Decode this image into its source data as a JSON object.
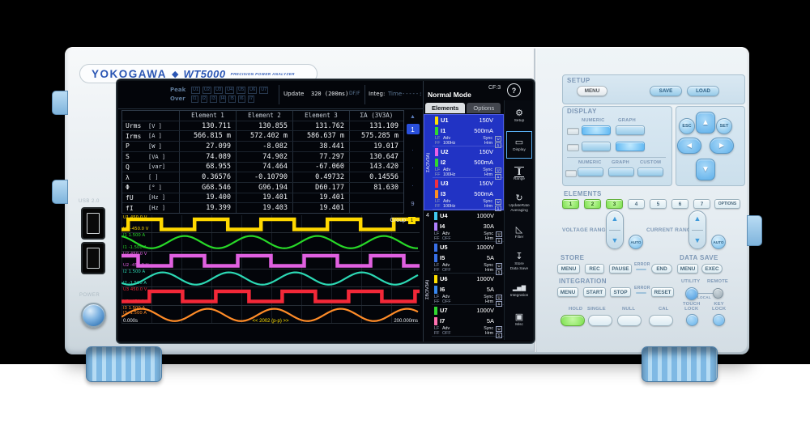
{
  "device": {
    "brand": "YOKOGAWA",
    "diamond": "◆",
    "model": "WT5000",
    "subtitle": "PRECISION POWER ANALYZER",
    "usb_label": "USB 2.0",
    "power_label": "POWER"
  },
  "screen": {
    "statusbar": {
      "peak_label": "Peak",
      "peak_channels": [
        "U1",
        "U2",
        "U3",
        "U4",
        "U5",
        "U6",
        "U7"
      ],
      "over_label": "Over",
      "over_channels": [
        "I1",
        "I2",
        "I3",
        "I4",
        "I5",
        "I6",
        "I7"
      ],
      "update_label": "Update",
      "update_value": "320 (200ms)",
      "update_suffix": "DF/F",
      "integ_label": "Integ:",
      "time_label": "Time",
      "time_value": "-----:--:--"
    },
    "table": {
      "headers": [
        "Element 1",
        "Element 2",
        "Element 3",
        "ΣA (3V3A)"
      ],
      "rows": [
        {
          "name": "Urms",
          "unit": "[V  ]",
          "values": [
            "130.711",
            "130.855",
            "131.762",
            "131.109"
          ]
        },
        {
          "name": "Irms",
          "unit": "[A  ]",
          "values": [
            "566.815 m",
            "572.402 m",
            "586.637 m",
            "575.285 m"
          ]
        },
        {
          "name": "P",
          "unit": "[W  ]",
          "values": [
            "27.099",
            "-8.082",
            "38.441",
            "19.017"
          ]
        },
        {
          "name": "S",
          "unit": "[VA ]",
          "values": [
            "74.089",
            "74.902",
            "77.297",
            "130.647"
          ]
        },
        {
          "name": "Q",
          "unit": "[var]",
          "values": [
            "68.955",
            "74.464",
            "-67.060",
            "143.420"
          ]
        },
        {
          "name": "λ",
          "unit": "[   ]",
          "values": [
            "0.36576",
            "-0.10790",
            "0.49732",
            "0.14556"
          ]
        },
        {
          "name": "Φ",
          "unit": "[°  ]",
          "values": [
            "G68.546",
            "G96.194",
            "D60.177",
            "81.630"
          ]
        },
        {
          "name": "fU",
          "unit": "[Hz ]",
          "values": [
            "19.400",
            "19.401",
            "19.401",
            ""
          ]
        },
        {
          "name": "fI",
          "unit": "[Hz ]",
          "values": [
            "19.399",
            "19.403",
            "19.401",
            ""
          ]
        }
      ]
    },
    "pager": {
      "up": "▲",
      "items": [
        "1",
        "·",
        "·",
        "·",
        "9"
      ],
      "current": "1",
      "down": "▼"
    },
    "sidebar": {
      "mode": "Normal Mode",
      "cf": "CF:3",
      "help": "?",
      "tabs": [
        {
          "label": "Elements",
          "active": true
        },
        {
          "label": "Options",
          "active": false
        }
      ],
      "group_a_label": "ΣA(3V3A)",
      "group_b_label": "ΣB(3V3A)",
      "element4_label": "4",
      "elements": [
        {
          "num": 1,
          "group": "A",
          "u_ch": "U1",
          "u_range": "150V",
          "u_color": "#ffe000",
          "i_ch": "I1",
          "i_range": "500mA",
          "i_color": "#30d830",
          "lf": "LF",
          "ff": "FF",
          "adv": "Adv",
          "freq": "100Hz",
          "sync": "Sync",
          "hrm": "Hrm",
          "box_u": "U",
          "box_n": "1"
        },
        {
          "num": 2,
          "group": "A",
          "u_ch": "U2",
          "u_range": "150V",
          "u_color": "#e860e8",
          "i_ch": "I2",
          "i_range": "500mA",
          "i_color": "#30d830",
          "lf": "LF",
          "ff": "FF",
          "adv": "Adv",
          "freq": "100Hz",
          "sync": "Sync",
          "hrm": "Hrm",
          "box_u": "U",
          "box_n": "1"
        },
        {
          "num": 3,
          "group": "A",
          "u_ch": "U3",
          "u_range": "150V",
          "u_color": "#f03040",
          "i_ch": "I3",
          "i_range": "500mA",
          "i_color": "#ff9020",
          "lf": "LF",
          "ff": "FF",
          "adv": "Adv",
          "freq": "100Hz",
          "sync": "Sync",
          "hrm": "Hrm",
          "box_u": "U",
          "box_n": "1"
        },
        {
          "num": 4,
          "group": "4",
          "u_ch": "U4",
          "u_range": "1000V",
          "u_color": "#40c8f0",
          "i_ch": "I4",
          "i_range": "30A",
          "i_color": "#b080ff",
          "lf": "LF",
          "ff": "FF",
          "adv": "Adv",
          "freq": "OFF",
          "sync": "Sync",
          "hrm": "Hrm",
          "box_u": "U",
          "box_n": "1"
        },
        {
          "num": 5,
          "group": "B",
          "u_ch": "U5",
          "u_range": "1000V",
          "u_color": "#3870e8",
          "i_ch": "I5",
          "i_range": "5A",
          "i_color": "#3870e8",
          "lf": "LF",
          "ff": "FF",
          "adv": "Adv",
          "freq": "OFF",
          "sync": "Sync",
          "hrm": "Hrm",
          "box_u": "U",
          "box_n": "1"
        },
        {
          "num": 6,
          "group": "B",
          "u_ch": "U6",
          "u_range": "1000V",
          "u_color": "#ffe000",
          "i_ch": "I6",
          "i_range": "5A",
          "i_color": "#3888f0",
          "lf": "LF",
          "ff": "FF",
          "adv": "Adv",
          "freq": "OFF",
          "sync": "Sync",
          "hrm": "Hrm",
          "box_u": "U",
          "box_n": "1"
        },
        {
          "num": 7,
          "group": "B",
          "u_ch": "U7",
          "u_range": "1000V",
          "u_color": "#30d830",
          "i_ch": "I7",
          "i_range": "5A",
          "i_color": "#ff70b0",
          "lf": "LF",
          "ff": "FF",
          "adv": "Adv",
          "freq": "OFF",
          "sync": "Sync",
          "hrm": "Hrm",
          "box_u": "U",
          "box_n": "1"
        }
      ],
      "menu": [
        {
          "icon": "gear",
          "lines": [
            "Setup"
          ],
          "active": false
        },
        {
          "icon": "display",
          "lines": [
            "Display"
          ],
          "active": true
        },
        {
          "icon": "range",
          "lines": [
            "Range"
          ],
          "active": false
        },
        {
          "icon": "update-rate",
          "lines": [
            "UpdateRate",
            "Averaging"
          ],
          "active": false
        },
        {
          "icon": "filter",
          "lines": [
            "Filter"
          ],
          "active": false
        },
        {
          "icon": "store",
          "lines": [
            "Store",
            "Data Save"
          ],
          "active": false
        },
        {
          "icon": "integration",
          "lines": [
            "Integration"
          ],
          "active": false
        },
        {
          "icon": "misc",
          "lines": [
            "Misc"
          ],
          "active": false
        }
      ]
    },
    "waveforms": {
      "group_label": "Group",
      "group_badge": "1",
      "t_start": "0.000s",
      "t_center": "<< 2002 (p-p) >>",
      "t_end": "200.000ms",
      "channels": [
        {
          "ch": "U1",
          "type": "square",
          "color": "#ffd800",
          "top": "450.0 V",
          "bottom": "-450.0 V",
          "phase": 0.3
        },
        {
          "ch": "I1",
          "type": "sine",
          "color": "#28d828",
          "top": "1.500 A",
          "bottom": "-1.500 A",
          "phase": 0.7
        },
        {
          "ch": "U2",
          "type": "square",
          "color": "#e060e0",
          "top": "450.0 V",
          "bottom": "-450.0 V",
          "phase": 0.95
        },
        {
          "ch": "I2",
          "type": "sine",
          "color": "#2cd8b4",
          "top": "1.500 A",
          "bottom": "-1.500 A",
          "phase": 0.37
        },
        {
          "ch": "U3",
          "type": "square",
          "color": "#f22838",
          "top": "450.0 V",
          "bottom": "-450.0 V",
          "phase": 0.62
        },
        {
          "ch": "I3",
          "type": "sine",
          "color": "#ff8c28",
          "top": "1.500 A",
          "bottom": "-1.500 A",
          "phase": 0.05
        }
      ]
    }
  },
  "panel": {
    "setup": {
      "label": "SETUP",
      "menu": "MENU",
      "save": "SAVE",
      "load": "LOAD"
    },
    "display": {
      "label": "DISPLAY",
      "row1_labels": [
        "NUMERIC",
        "GRAPH"
      ],
      "row3_labels": [
        "NUMERIC",
        "GRAPH",
        "CUSTOM"
      ]
    },
    "nav": {
      "esc": "ESC",
      "set": "SET",
      "up": "▲",
      "down": "▼",
      "left": "◀",
      "right": "▶"
    },
    "elements": {
      "label": "ELEMENTS",
      "buttons": [
        "1",
        "2",
        "3",
        "4",
        "5",
        "6",
        "7"
      ],
      "lit": [
        "1",
        "2",
        "3"
      ],
      "options": "OPTIONS"
    },
    "ranges": {
      "voltage_label": "VOLTAGE RANGE",
      "current_label": "CURRENT RANGE",
      "auto": "AUTO",
      "up": "▲",
      "down": "▼"
    },
    "store": {
      "label": "STORE",
      "menu": "MENU",
      "rec": "REC",
      "pause": "PAUSE",
      "error": "ERROR",
      "end": "END"
    },
    "data_save": {
      "label": "DATA SAVE",
      "menu": "MENU",
      "exec": "EXEC"
    },
    "integration": {
      "label": "INTEGRATION",
      "menu": "MENU",
      "start": "START",
      "stop": "STOP",
      "error": "ERROR",
      "reset": "RESET"
    },
    "utility": {
      "utility_label": "UTILITY",
      "remote_label": "REMOTE",
      "local_label": "LOCAL"
    },
    "bottom": {
      "hold": "HOLD",
      "single": "SINGLE",
      "null": "NULL",
      "cal": "CAL",
      "touch_lock_1": "TOUCH",
      "touch_lock_2": "LOCK",
      "key_lock_1": "KEY",
      "key_lock_2": "LOCK"
    }
  }
}
